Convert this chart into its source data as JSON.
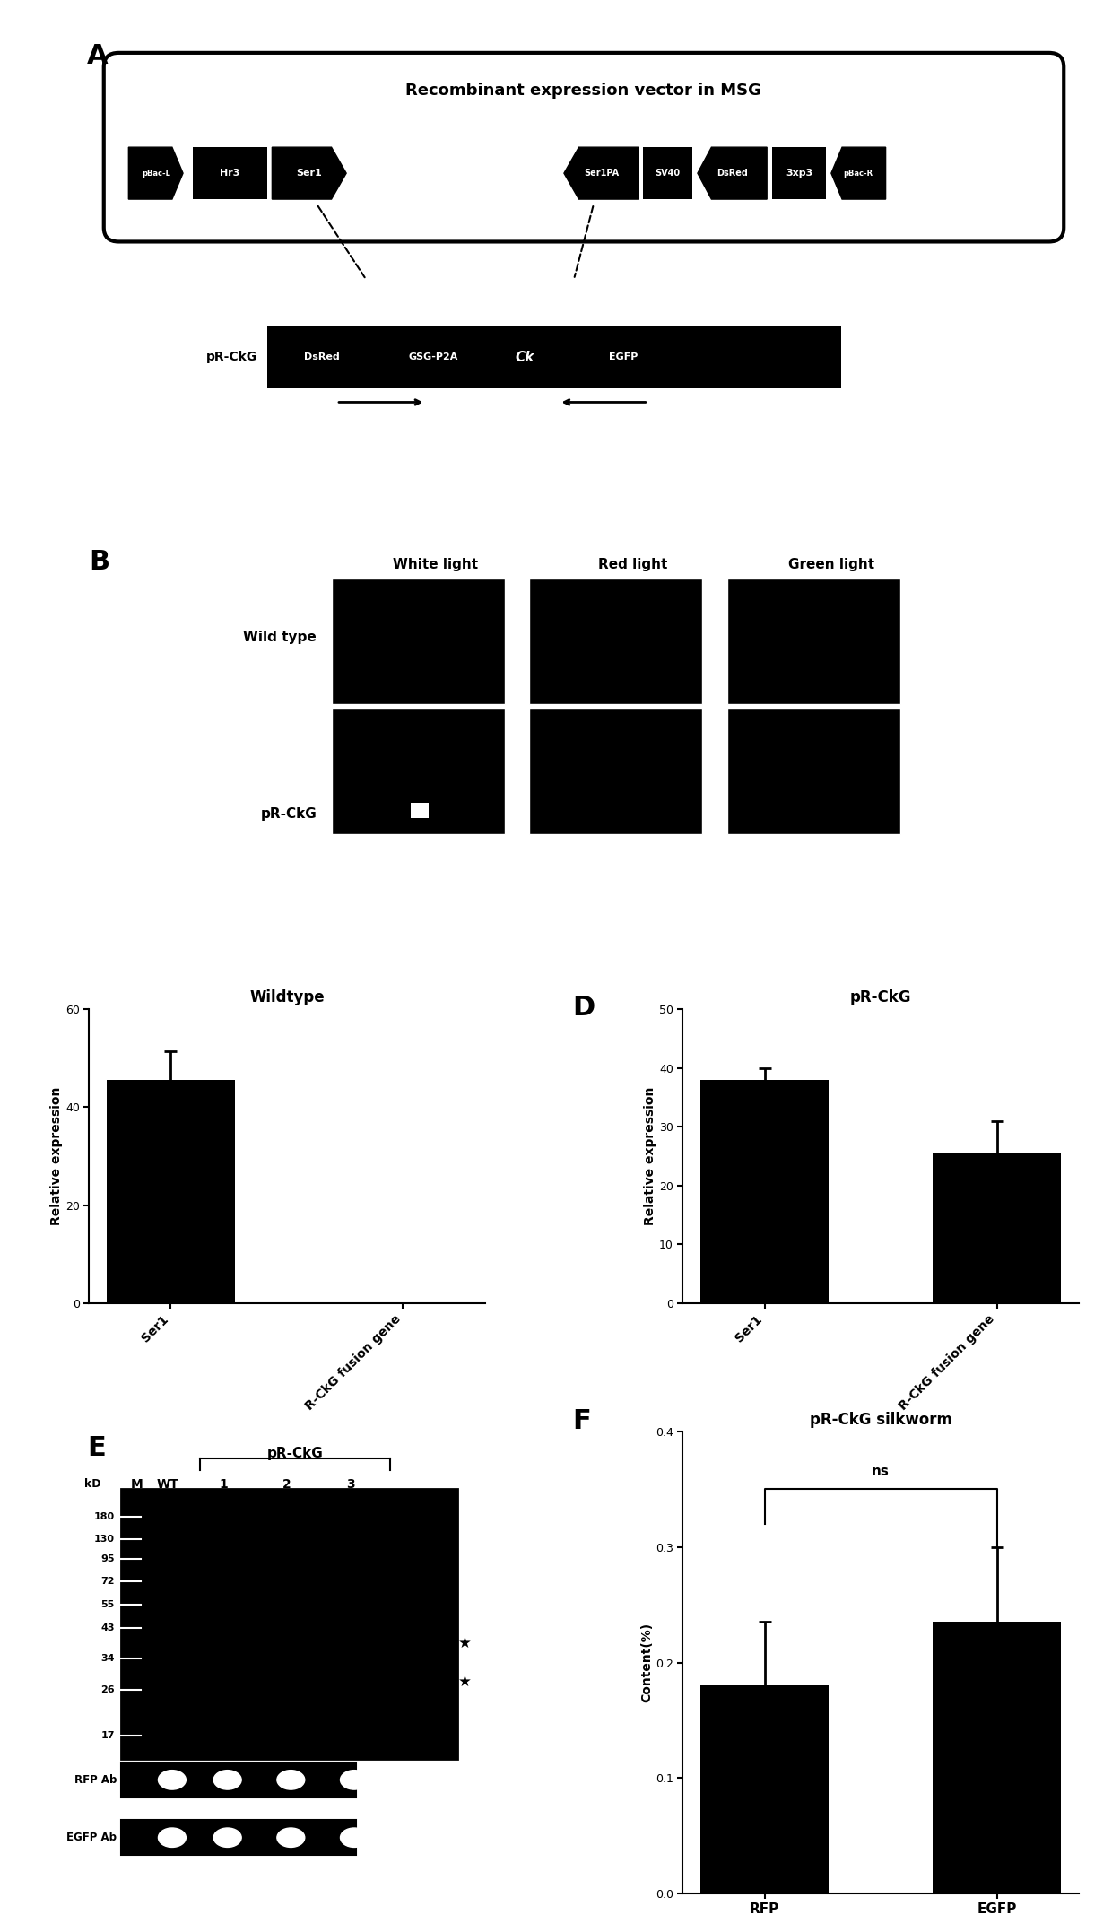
{
  "panel_A": {
    "title": "Recombinant expression vector in MSG",
    "top_elements": [
      "pBac-L",
      "Hr3",
      "Ser1",
      "Ser1PA",
      "SV40",
      "DsRed",
      "3xp3",
      "pBac-R"
    ],
    "bottom_elements": [
      "DsRed",
      "GSG-P2A",
      "Ck",
      "EGFP"
    ],
    "bottom_label": "pR-CkG"
  },
  "panel_B": {
    "col_labels": [
      "White light",
      "Red light",
      "Green light"
    ],
    "row_labels": [
      "Wild type",
      "pR-CkG"
    ],
    "background_color": "#000000"
  },
  "panel_C": {
    "title": "Wildtype",
    "categories": [
      "Ser1",
      "R-CkG fusion gene"
    ],
    "values": [
      45.5,
      0
    ],
    "errors": [
      6.0,
      0
    ],
    "ylabel": "Relative expression",
    "ylim": [
      0,
      60
    ],
    "yticks": [
      0,
      20,
      40,
      60
    ]
  },
  "panel_D": {
    "title": "pR-CkG",
    "categories": [
      "Ser1",
      "R-CkG fusion gene"
    ],
    "values": [
      38.0,
      25.5
    ],
    "errors": [
      2.0,
      5.5
    ],
    "ylabel": "Relative expression",
    "ylim": [
      0,
      50
    ],
    "yticks": [
      0,
      10,
      20,
      30,
      40,
      50
    ]
  },
  "panel_E": {
    "title": "pR-CkG",
    "lane_labels": [
      "M",
      "WT",
      "1",
      "2",
      "3"
    ],
    "mw_markers": [
      180,
      130,
      95,
      72,
      55,
      43,
      34,
      26,
      17
    ],
    "antibody_labels": [
      "RFP Ab",
      "EGFP Ab"
    ]
  },
  "panel_F": {
    "title": "pR-CkG silkworm",
    "categories": [
      "RFP",
      "EGFP"
    ],
    "values": [
      0.18,
      0.235
    ],
    "errors": [
      0.055,
      0.065
    ],
    "ylabel": "Content(%)",
    "ylim": [
      0.0,
      0.4
    ],
    "yticks": [
      0.0,
      0.1,
      0.2,
      0.3,
      0.4
    ],
    "ns_label": "ns"
  },
  "bar_color": "#000000",
  "text_color": "#000000",
  "bg_color": "#ffffff"
}
